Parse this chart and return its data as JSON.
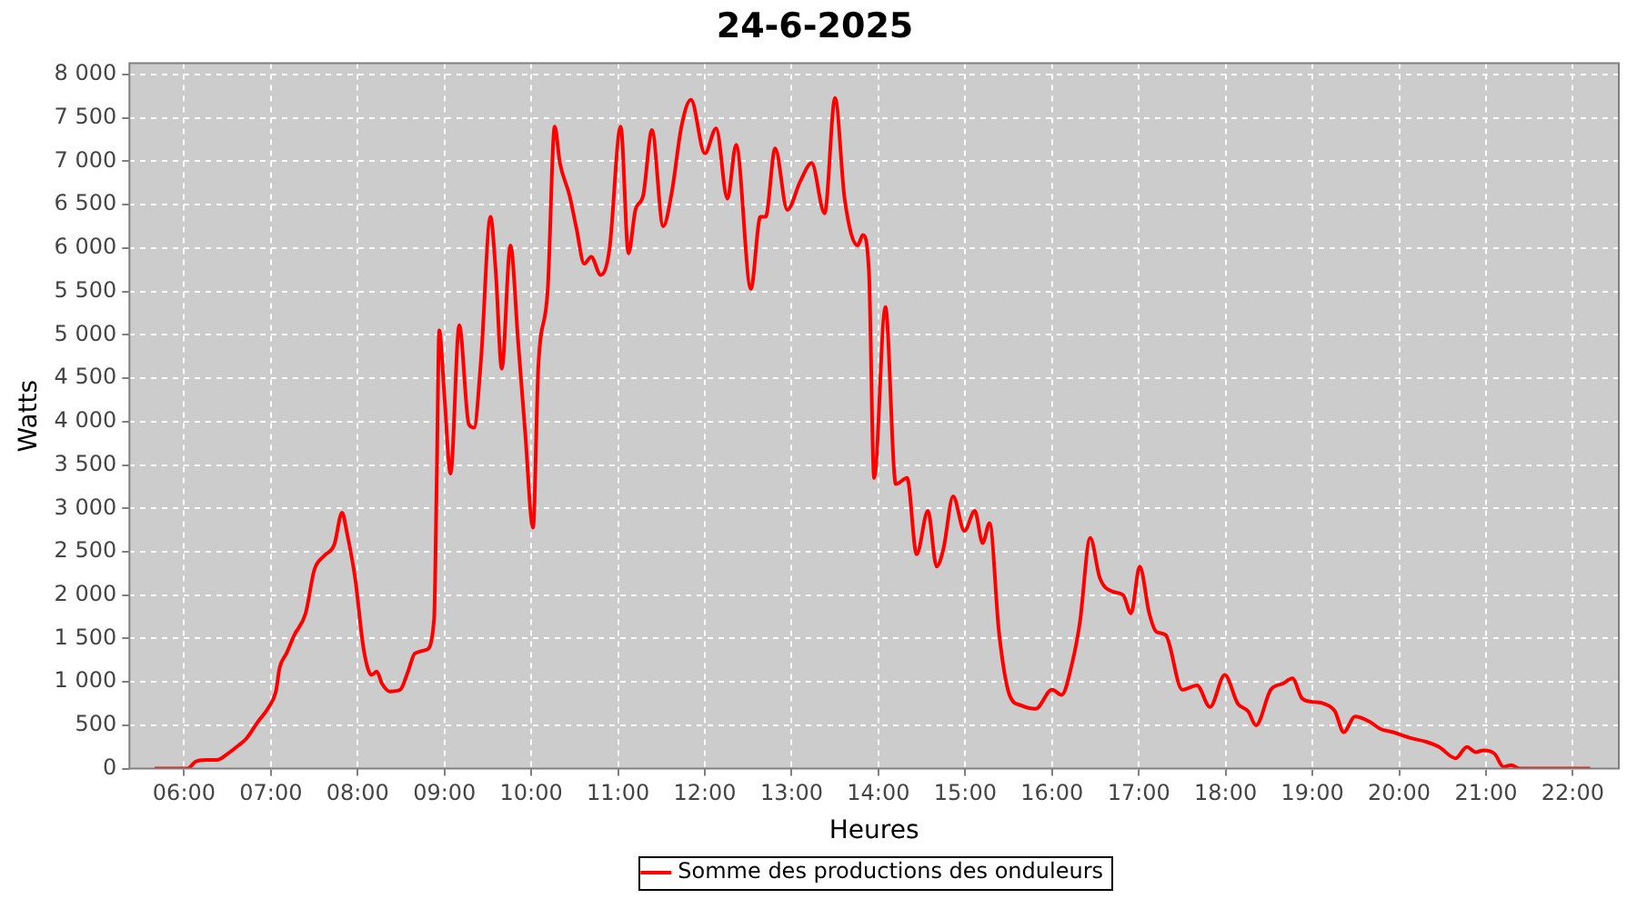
{
  "chart_data": {
    "type": "line",
    "title": "24-6-2025",
    "xlabel": "Heures",
    "ylabel": "Watts",
    "xlim": [
      5.37,
      22.53
    ],
    "xticks": [
      {
        "value": 6,
        "label": "06:00"
      },
      {
        "value": 7,
        "label": "07:00"
      },
      {
        "value": 8,
        "label": "08:00"
      },
      {
        "value": 9,
        "label": "09:00"
      },
      {
        "value": 10,
        "label": "10:00"
      },
      {
        "value": 11,
        "label": "11:00"
      },
      {
        "value": 12,
        "label": "12:00"
      },
      {
        "value": 13,
        "label": "13:00"
      },
      {
        "value": 14,
        "label": "14:00"
      },
      {
        "value": 15,
        "label": "15:00"
      },
      {
        "value": 16,
        "label": "16:00"
      },
      {
        "value": 17,
        "label": "17:00"
      },
      {
        "value": 18,
        "label": "18:00"
      },
      {
        "value": 19,
        "label": "19:00"
      },
      {
        "value": 20,
        "label": "20:00"
      },
      {
        "value": 21,
        "label": "21:00"
      },
      {
        "value": 22,
        "label": "22:00"
      }
    ],
    "ylim": [
      0,
      8130
    ],
    "yticks": [
      0,
      500,
      {
        "value": 1000,
        "label": "1 000"
      },
      {
        "value": 1500,
        "label": "1 500"
      },
      {
        "value": 2000,
        "label": "2 000"
      },
      {
        "value": 2500,
        "label": "2 500"
      },
      {
        "value": 3000,
        "label": "3 000"
      },
      {
        "value": 3500,
        "label": "3 500"
      },
      {
        "value": 4000,
        "label": "4 000"
      },
      {
        "value": 4500,
        "label": "4 500"
      },
      {
        "value": 5000,
        "label": "5 000"
      },
      {
        "value": 5500,
        "label": "5 500"
      },
      {
        "value": 6000,
        "label": "6 000"
      },
      {
        "value": 6500,
        "label": "6 500"
      },
      {
        "value": 7000,
        "label": "7 000"
      },
      {
        "value": 7500,
        "label": "7 500"
      },
      {
        "value": 8000,
        "label": "8 000"
      }
    ],
    "grid": true,
    "legend": "bottom",
    "line_style": "solid",
    "x": [
      5.66,
      6.04,
      6.13,
      6.25,
      6.38,
      6.5,
      6.63,
      6.72,
      6.85,
      6.97,
      7.06,
      7.1,
      7.18,
      7.27,
      7.4,
      7.5,
      7.61,
      7.73,
      7.82,
      7.88,
      7.97,
      8.07,
      8.16,
      8.22,
      8.28,
      8.37,
      8.49,
      8.58,
      8.66,
      8.79,
      8.88,
      8.91,
      8.94,
      9.0,
      9.07,
      9.17,
      9.28,
      9.34,
      9.42,
      9.53,
      9.59,
      9.66,
      9.76,
      9.85,
      9.93,
      10.02,
      10.08,
      10.19,
      10.27,
      10.33,
      10.44,
      10.52,
      10.61,
      10.69,
      10.8,
      10.9,
      11.03,
      11.12,
      11.2,
      11.29,
      11.39,
      11.52,
      11.62,
      11.73,
      11.84,
      12.0,
      12.13,
      12.26,
      12.36,
      12.53,
      12.64,
      12.7,
      12.81,
      12.95,
      13.1,
      13.23,
      13.38,
      13.5,
      13.61,
      13.76,
      13.82,
      13.89,
      13.95,
      14.08,
      14.2,
      14.33,
      14.44,
      14.57,
      14.67,
      14.75,
      14.86,
      14.99,
      15.11,
      15.2,
      15.28,
      15.39,
      15.51,
      15.64,
      15.81,
      16.0,
      16.11,
      16.23,
      16.32,
      16.44,
      16.55,
      16.7,
      16.82,
      16.91,
      17.01,
      17.12,
      17.2,
      17.31,
      17.5,
      17.67,
      17.82,
      17.99,
      18.14,
      18.26,
      18.35,
      18.52,
      18.66,
      18.77,
      18.88,
      19.0,
      19.13,
      19.26,
      19.36,
      19.49,
      19.66,
      19.78,
      19.93,
      20.14,
      20.31,
      20.46,
      20.65,
      20.78,
      20.88,
      20.97,
      21.1,
      21.2,
      21.29,
      21.39,
      22.2
    ],
    "series": [
      {
        "name": "Somme des productions des onduleurs",
        "color": "#ff0000",
        "values": [
          0,
          0,
          80,
          100,
          100,
          170,
          270,
          350,
          540,
          700,
          900,
          1160,
          1330,
          1540,
          1790,
          2290,
          2450,
          2580,
          2950,
          2700,
          2200,
          1370,
          1080,
          1120,
          980,
          890,
          910,
          1120,
          1330,
          1370,
          1720,
          3300,
          5050,
          4280,
          3400,
          5110,
          3970,
          3930,
          4700,
          6360,
          5740,
          4610,
          6030,
          4900,
          3870,
          2780,
          4610,
          5530,
          7400,
          6980,
          6610,
          6230,
          5820,
          5900,
          5690,
          5980,
          7400,
          5940,
          6440,
          6610,
          7360,
          6250,
          6650,
          7400,
          7710,
          7090,
          7380,
          6570,
          7190,
          5530,
          6360,
          6360,
          7150,
          6440,
          6770,
          6980,
          6400,
          7730,
          6570,
          6030,
          6150,
          5740,
          3350,
          5320,
          3280,
          3350,
          2470,
          2970,
          2330,
          2540,
          3140,
          2740,
          2970,
          2600,
          2830,
          1560,
          850,
          730,
          690,
          910,
          850,
          1210,
          1680,
          2660,
          2200,
          2040,
          2000,
          1790,
          2330,
          1790,
          1580,
          1540,
          910,
          960,
          710,
          1080,
          750,
          660,
          500,
          910,
          980,
          1040,
          810,
          770,
          750,
          660,
          420,
          600,
          540,
          460,
          420,
          350,
          310,
          250,
          120,
          250,
          190,
          210,
          170,
          20,
          40,
          0,
          0
        ]
      }
    ]
  }
}
